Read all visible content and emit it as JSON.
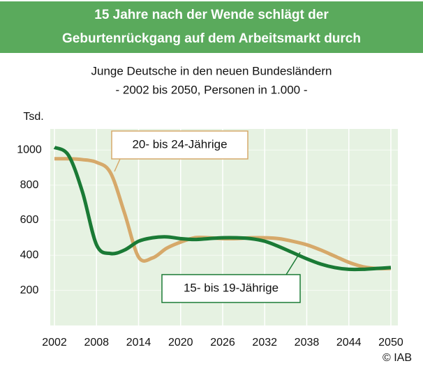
{
  "chart_data": {
    "type": "line",
    "title": [
      "15 Jahre nach der Wende schlägt der",
      "Geburtenrückgang auf dem Arbeitsmarkt durch"
    ],
    "subtitle": [
      "Junge Deutsche in den neuen Bundesländern",
      "- 2002 bis 2050, Personen in 1.000 -"
    ],
    "y_label": "Tsd.",
    "source": "© IAB",
    "x": [
      2002,
      2004,
      2006,
      2008,
      2010,
      2012,
      2014,
      2016,
      2018,
      2020,
      2022,
      2024,
      2026,
      2028,
      2030,
      2032,
      2034,
      2036,
      2038,
      2040,
      2042,
      2044,
      2046,
      2048,
      2050
    ],
    "series": [
      {
        "name": "20- bis 24-Jährige",
        "color": "#d6a96a",
        "values": [
          950,
          950,
          945,
          930,
          870,
          640,
          390,
          385,
          440,
          475,
          500,
          500,
          495,
          495,
          500,
          500,
          495,
          480,
          460,
          430,
          395,
          360,
          335,
          325,
          325
        ]
      },
      {
        "name": "15- bis 19-Jährige",
        "color": "#1a7a35",
        "values": [
          1015,
          970,
          760,
          460,
          410,
          430,
          480,
          500,
          505,
          495,
          490,
          495,
          500,
          500,
          495,
          480,
          450,
          415,
          380,
          350,
          330,
          320,
          320,
          325,
          330
        ]
      }
    ],
    "xlim": [
      2001.4,
      2051
    ],
    "xticks": [
      2002,
      2008,
      2014,
      2020,
      2026,
      2032,
      2038,
      2044,
      2050
    ],
    "ylim": [
      0,
      1120
    ],
    "yticks": [
      200,
      400,
      600,
      800,
      1000
    ],
    "grid": true
  }
}
